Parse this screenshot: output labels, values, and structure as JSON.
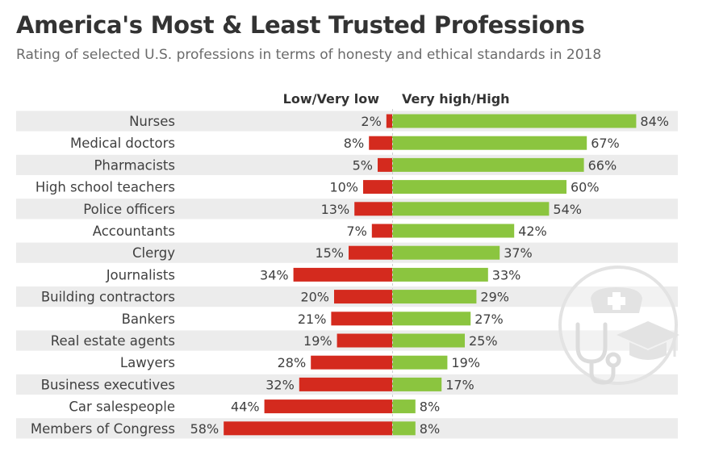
{
  "header": {
    "title": "America's Most & Least Trusted Professions",
    "subtitle": "Rating of selected U.S. professions in terms of honesty and ethical standards in 2018"
  },
  "chart_data": {
    "type": "bar",
    "title": "America's Most & Least Trusted Professions",
    "subtitle": "Rating of selected U.S. professions in terms of honesty and ethical standards in 2018",
    "unit": "%",
    "categories": [
      "Nurses",
      "Medical doctors",
      "Pharmacists",
      "High school teachers",
      "Police officers",
      "Accountants",
      "Clergy",
      "Journalists",
      "Building contractors",
      "Bankers",
      "Real estate agents",
      "Lawyers",
      "Business executives",
      "Car salespeople",
      "Members of Congress"
    ],
    "series": [
      {
        "name": "Low/Very low",
        "direction": "left",
        "color": "#d42a1e",
        "values": [
          2,
          8,
          5,
          10,
          13,
          7,
          15,
          34,
          20,
          21,
          19,
          28,
          32,
          44,
          58
        ]
      },
      {
        "name": "Very high/High",
        "direction": "right",
        "color": "#8bc53f",
        "values": [
          84,
          67,
          66,
          60,
          54,
          42,
          37,
          33,
          29,
          27,
          25,
          19,
          17,
          8,
          8
        ]
      }
    ]
  },
  "colors": {
    "row_band": "#ececec",
    "text": "#404040",
    "watermark": "#e3e3e3"
  },
  "watermark_icons": [
    "nurse-cap-icon",
    "stethoscope-icon",
    "graduation-cap-icon"
  ]
}
